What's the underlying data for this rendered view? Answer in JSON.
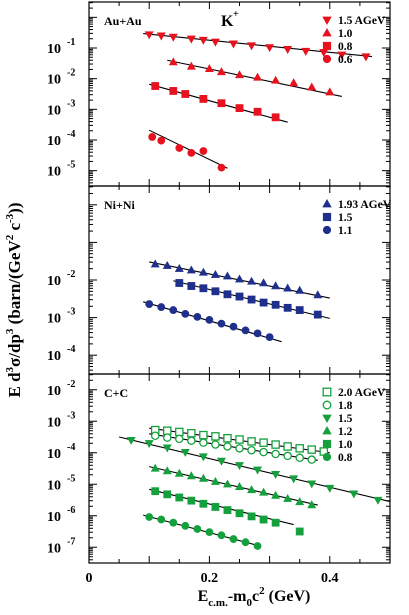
{
  "chart_data": {
    "type": "scatter",
    "title": "",
    "xlabel": "E_c.m.-m_0c^2 (GeV)",
    "ylabel": "E d^3σ/dp^3 (barn/(GeV^2 c^-3))",
    "xlim": [
      0,
      0.5
    ],
    "xtick_labels": [
      "0",
      "0.2",
      "0.4"
    ],
    "xticks": [
      0,
      0.2,
      0.4
    ],
    "panels": [
      {
        "system": "Au+Au",
        "particle": "K+",
        "particle_base": "K",
        "particle_sup": "+",
        "ylim_log10": [
          -5.5,
          0.5
        ],
        "ytick_log10": [
          -1,
          -2,
          -3,
          -4,
          -5
        ],
        "ytick_labels": [
          "-1",
          "-2",
          "-3",
          "-4",
          "-5"
        ],
        "legend_placement": "top-right",
        "series": [
          {
            "name": "1.5 AGeV",
            "marker": "triangle-down",
            "filled": true,
            "color": "#e8121e",
            "points": [
              [
                0.1,
                -0.56
              ],
              [
                0.12,
                -0.6
              ],
              [
                0.14,
                -0.64
              ],
              [
                0.17,
                -0.7
              ],
              [
                0.19,
                -0.74
              ],
              [
                0.21,
                -0.8
              ],
              [
                0.24,
                -0.86
              ],
              [
                0.27,
                -0.92
              ],
              [
                0.3,
                -0.98
              ],
              [
                0.33,
                -1.04
              ],
              [
                0.36,
                -1.1
              ],
              [
                0.39,
                -1.14
              ],
              [
                0.42,
                -1.22
              ],
              [
                0.46,
                -1.28
              ]
            ],
            "fit": [
              [
                0.09,
                -0.53
              ],
              [
                0.47,
                -1.28
              ]
            ]
          },
          {
            "name": "1.0",
            "marker": "triangle-up",
            "filled": true,
            "color": "#e8121e",
            "points": [
              [
                0.14,
                -1.46
              ],
              [
                0.17,
                -1.6
              ],
              [
                0.2,
                -1.68
              ],
              [
                0.22,
                -1.78
              ],
              [
                0.25,
                -1.88
              ],
              [
                0.28,
                -1.96
              ],
              [
                0.31,
                -2.06
              ],
              [
                0.34,
                -2.14
              ],
              [
                0.37,
                -2.28
              ],
              [
                0.4,
                -2.44
              ]
            ],
            "fit": [
              [
                0.13,
                -1.4
              ],
              [
                0.42,
                -2.58
              ]
            ]
          },
          {
            "name": "0.8",
            "marker": "square",
            "filled": true,
            "color": "#e8121e",
            "points": [
              [
                0.11,
                -2.24
              ],
              [
                0.14,
                -2.4
              ],
              [
                0.16,
                -2.5
              ],
              [
                0.19,
                -2.66
              ],
              [
                0.22,
                -2.8
              ],
              [
                0.25,
                -2.96
              ],
              [
                0.28,
                -3.08
              ],
              [
                0.31,
                -3.26
              ]
            ],
            "fit": [
              [
                0.1,
                -2.18
              ],
              [
                0.33,
                -3.42
              ]
            ]
          },
          {
            "name": "0.6",
            "marker": "circle",
            "filled": true,
            "color": "#e8121e",
            "points": [
              [
                0.105,
                -3.9
              ],
              [
                0.12,
                -4.02
              ],
              [
                0.15,
                -4.26
              ],
              [
                0.17,
                -4.42
              ],
              [
                0.19,
                -4.36
              ],
              [
                0.22,
                -4.9
              ]
            ],
            "fit": [
              [
                0.1,
                -3.68
              ],
              [
                0.23,
                -4.92
              ]
            ]
          }
        ]
      },
      {
        "system": "Ni+Ni",
        "ylim_log10": [
          -4.5,
          0.5
        ],
        "ytick_log10": [
          -2,
          -3,
          -4
        ],
        "ytick_labels": [
          "-2",
          "-3",
          "-4"
        ],
        "legend_placement": "top-right",
        "series": [
          {
            "name": "1.93 AGeV",
            "marker": "triangle-up",
            "filled": true,
            "color": "#1f2f8c",
            "points": [
              [
                0.11,
                -1.58
              ],
              [
                0.13,
                -1.62
              ],
              [
                0.15,
                -1.7
              ],
              [
                0.17,
                -1.74
              ],
              [
                0.19,
                -1.8
              ],
              [
                0.21,
                -1.86
              ],
              [
                0.23,
                -1.9
              ],
              [
                0.25,
                -1.98
              ],
              [
                0.27,
                -2.04
              ],
              [
                0.29,
                -2.08
              ],
              [
                0.31,
                -2.16
              ],
              [
                0.33,
                -2.22
              ],
              [
                0.35,
                -2.28
              ],
              [
                0.38,
                -2.4
              ]
            ],
            "fit": [
              [
                0.1,
                -1.52
              ],
              [
                0.4,
                -2.48
              ]
            ]
          },
          {
            "name": "1.5",
            "marker": "square",
            "filled": true,
            "color": "#1f2f8c",
            "points": [
              [
                0.15,
                -2.08
              ],
              [
                0.17,
                -2.16
              ],
              [
                0.19,
                -2.22
              ],
              [
                0.21,
                -2.3
              ],
              [
                0.23,
                -2.38
              ],
              [
                0.25,
                -2.44
              ],
              [
                0.27,
                -2.52
              ],
              [
                0.29,
                -2.6
              ],
              [
                0.31,
                -2.66
              ],
              [
                0.33,
                -2.74
              ],
              [
                0.35,
                -2.8
              ],
              [
                0.38,
                -2.92
              ]
            ],
            "fit": [
              [
                0.14,
                -2.02
              ],
              [
                0.4,
                -3.02
              ]
            ]
          },
          {
            "name": "1.1",
            "marker": "circle",
            "filled": true,
            "color": "#1f2f8c",
            "points": [
              [
                0.1,
                -2.64
              ],
              [
                0.12,
                -2.72
              ],
              [
                0.14,
                -2.8
              ],
              [
                0.16,
                -2.9
              ],
              [
                0.18,
                -2.98
              ],
              [
                0.2,
                -3.06
              ],
              [
                0.22,
                -3.16
              ],
              [
                0.24,
                -3.24
              ],
              [
                0.26,
                -3.34
              ],
              [
                0.28,
                -3.42
              ],
              [
                0.3,
                -3.52
              ]
            ],
            "fit": [
              [
                0.09,
                -2.58
              ],
              [
                0.32,
                -3.64
              ]
            ]
          }
        ]
      },
      {
        "system": "C+C",
        "ylim_log10": [
          -7.5,
          -1.5
        ],
        "ytick_log10": [
          -2,
          -3,
          -4,
          -5,
          -6,
          -7
        ],
        "ytick_labels": [
          "-2",
          "-3",
          "-4",
          "-5",
          "-6",
          "-7"
        ],
        "legend_placement": "top-right",
        "series": [
          {
            "name": "2.0 AGeV",
            "marker": "square",
            "filled": false,
            "color": "#14a03c",
            "points": [
              [
                0.11,
                -3.28
              ],
              [
                0.13,
                -3.3
              ],
              [
                0.15,
                -3.34
              ],
              [
                0.17,
                -3.38
              ],
              [
                0.19,
                -3.44
              ],
              [
                0.21,
                -3.48
              ],
              [
                0.23,
                -3.54
              ],
              [
                0.25,
                -3.58
              ],
              [
                0.27,
                -3.64
              ],
              [
                0.29,
                -3.68
              ],
              [
                0.31,
                -3.74
              ],
              [
                0.33,
                -3.8
              ],
              [
                0.35,
                -3.86
              ],
              [
                0.37,
                -3.9
              ],
              [
                0.39,
                -3.96
              ]
            ],
            "fit": [
              [
                0.1,
                -3.22
              ],
              [
                0.4,
                -4.0
              ]
            ]
          },
          {
            "name": "1.8",
            "marker": "circle",
            "filled": false,
            "color": "#14a03c",
            "points": [
              [
                0.11,
                -3.46
              ],
              [
                0.13,
                -3.52
              ],
              [
                0.15,
                -3.56
              ],
              [
                0.17,
                -3.62
              ],
              [
                0.19,
                -3.68
              ],
              [
                0.21,
                -3.74
              ],
              [
                0.23,
                -3.8
              ],
              [
                0.25,
                -3.86
              ],
              [
                0.27,
                -3.92
              ],
              [
                0.29,
                -3.98
              ],
              [
                0.31,
                -4.04
              ],
              [
                0.33,
                -4.1
              ],
              [
                0.35,
                -4.16
              ],
              [
                0.37,
                -4.22
              ]
            ],
            "fit": [
              [
                0.1,
                -3.4
              ],
              [
                0.38,
                -4.24
              ]
            ]
          },
          {
            "name": "1.5",
            "marker": "triangle-down",
            "filled": true,
            "color": "#14a03c",
            "points": [
              [
                0.07,
                -3.6
              ],
              [
                0.1,
                -3.7
              ],
              [
                0.13,
                -3.84
              ],
              [
                0.16,
                -3.98
              ],
              [
                0.19,
                -4.12
              ],
              [
                0.22,
                -4.26
              ],
              [
                0.25,
                -4.4
              ],
              [
                0.28,
                -4.54
              ],
              [
                0.31,
                -4.68
              ],
              [
                0.34,
                -4.82
              ],
              [
                0.37,
                -4.98
              ],
              [
                0.4,
                -5.12
              ],
              [
                0.44,
                -5.3
              ],
              [
                0.48,
                -5.5
              ]
            ],
            "fit": [
              [
                0.05,
                -3.5
              ],
              [
                0.5,
                -5.55
              ]
            ]
          },
          {
            "name": "1.2",
            "marker": "triangle-up",
            "filled": true,
            "color": "#14a03c",
            "points": [
              [
                0.11,
                -4.5
              ],
              [
                0.13,
                -4.58
              ],
              [
                0.15,
                -4.66
              ],
              [
                0.17,
                -4.74
              ],
              [
                0.19,
                -4.82
              ],
              [
                0.21,
                -4.92
              ],
              [
                0.23,
                -5.0
              ],
              [
                0.25,
                -5.08
              ],
              [
                0.27,
                -5.18
              ],
              [
                0.29,
                -5.26
              ],
              [
                0.31,
                -5.36
              ],
              [
                0.33,
                -5.46
              ],
              [
                0.35,
                -5.56
              ],
              [
                0.37,
                -5.66
              ]
            ],
            "fit": [
              [
                0.1,
                -4.44
              ],
              [
                0.38,
                -5.66
              ]
            ]
          },
          {
            "name": "1.0",
            "marker": "square",
            "filled": true,
            "color": "#14a03c",
            "points": [
              [
                0.11,
                -5.22
              ],
              [
                0.13,
                -5.32
              ],
              [
                0.15,
                -5.42
              ],
              [
                0.17,
                -5.52
              ],
              [
                0.19,
                -5.62
              ],
              [
                0.21,
                -5.72
              ],
              [
                0.23,
                -5.82
              ],
              [
                0.25,
                -5.92
              ],
              [
                0.27,
                -6.02
              ],
              [
                0.29,
                -6.12
              ],
              [
                0.31,
                -6.22
              ],
              [
                0.35,
                -6.5
              ]
            ],
            "fit": [
              [
                0.1,
                -5.16
              ],
              [
                0.34,
                -6.28
              ]
            ]
          },
          {
            "name": "0.8",
            "marker": "circle",
            "filled": true,
            "color": "#14a03c",
            "points": [
              [
                0.1,
                -6.04
              ],
              [
                0.12,
                -6.12
              ],
              [
                0.14,
                -6.22
              ],
              [
                0.16,
                -6.32
              ],
              [
                0.18,
                -6.42
              ],
              [
                0.2,
                -6.52
              ],
              [
                0.22,
                -6.62
              ],
              [
                0.24,
                -6.74
              ],
              [
                0.26,
                -6.84
              ],
              [
                0.28,
                -6.96
              ]
            ],
            "fit": [
              [
                0.09,
                -5.98
              ],
              [
                0.28,
                -6.94
              ]
            ]
          }
        ]
      }
    ],
    "axis_label_parts": {
      "x_main": "E",
      "x_sub": "c.m.",
      "x_mid": "-m",
      "x_sub2": "0",
      "x_c": "c",
      "x_sup": "2",
      "x_tail": " (GeV)",
      "y_main": "E d",
      "y_sup1": "3",
      "y_mid": "σ/dp",
      "y_sup2": "3",
      "y_tail1": " (barn/(GeV",
      "y_sup3": "2",
      "y_tail2": " c",
      "y_sup4": "-3",
      "y_tail3": "))"
    },
    "tick_base_label": "10"
  }
}
